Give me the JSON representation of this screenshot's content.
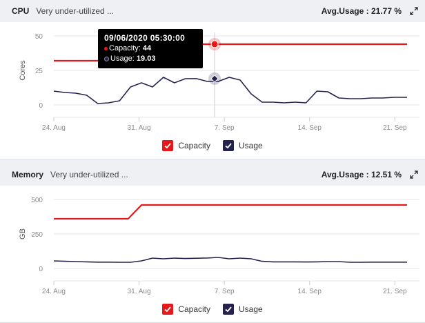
{
  "panels": [
    {
      "title": "CPU",
      "status": "Very under-utilized ...",
      "avg_usage": "Avg.Usage : 21.77 %",
      "chart_data": {
        "type": "line",
        "ylabel": "Cores",
        "ylim": [
          0,
          50
        ],
        "y_ticks": [
          "0",
          "25",
          "50"
        ],
        "x_ticks": [
          "24. Aug",
          "31. Aug",
          "7. Sep",
          "14. Sep",
          "21. Sep"
        ],
        "x_tick_days": [
          0,
          7,
          14,
          21,
          28
        ],
        "x_range_days": [
          0,
          29
        ],
        "series": [
          {
            "name": "Capacity",
            "color": "#e5191b",
            "x_days": [
              0,
              7.2,
              7.5,
              29
            ],
            "values": [
              32,
              32,
              44,
              44
            ]
          },
          {
            "name": "Usage",
            "color": "#23234d",
            "x_days": [
              0,
              0.9,
              1.8,
              2.7,
              3.6,
              4.5,
              5.4,
              6.3,
              7.2,
              8.1,
              9.0,
              9.9,
              10.8,
              11.7,
              12.6,
              13.5,
              14.4,
              15.3,
              16.2,
              17.1,
              18.0,
              18.9,
              19.8,
              20.7,
              21.6,
              22.5,
              23.4,
              24.3,
              25.2,
              26.1,
              27.0,
              27.9,
              29.0
            ],
            "values": [
              10,
              9,
              8.5,
              7,
              1,
              1.5,
              3,
              13,
              16,
              13,
              20,
              16,
              19,
              19.03,
              17,
              17,
              20,
              18,
              8,
              2,
              2,
              1.5,
              2,
              1.5,
              10,
              9.5,
              5,
              4.5,
              4.5,
              5,
              5,
              5.5,
              5.5
            ]
          }
        ],
        "tooltip": {
          "time": "09/06/2020 05:30:00",
          "capacity_label": "Capacity:",
          "capacity_value": "44",
          "usage_label": "Usage:",
          "usage_value": "19.03",
          "x_day": 13.2
        },
        "legend": [
          "Capacity",
          "Usage"
        ]
      }
    },
    {
      "title": "Memory",
      "status": "Very under-utilized ...",
      "avg_usage": "Avg.Usage : 12.51 %",
      "chart_data": {
        "type": "line",
        "ylabel": "GB",
        "ylim": [
          0,
          500
        ],
        "y_ticks": [
          "0",
          "250",
          "500"
        ],
        "x_ticks": [
          "24. Aug",
          "31. Aug",
          "7. Sep",
          "14. Sep",
          "21. Sep"
        ],
        "x_tick_days": [
          0,
          7,
          14,
          21,
          28
        ],
        "x_range_days": [
          0,
          29
        ],
        "series": [
          {
            "name": "Capacity",
            "color": "#e5191b",
            "x_days": [
              0,
              6.1,
              7.2,
              29
            ],
            "values": [
              360,
              360,
              460,
              460
            ]
          },
          {
            "name": "Usage",
            "color": "#23234d",
            "x_days": [
              0,
              0.9,
              1.8,
              2.7,
              3.6,
              4.5,
              5.4,
              6.3,
              7.2,
              8.1,
              9.0,
              9.9,
              10.8,
              11.7,
              12.6,
              13.5,
              14.4,
              15.3,
              16.2,
              17.1,
              18.0,
              18.9,
              19.8,
              20.7,
              21.6,
              22.5,
              23.4,
              24.3,
              25.2,
              26.1,
              27.0,
              27.9,
              29.0
            ],
            "values": [
              55,
              52,
              50,
              48,
              46,
              46,
              45,
              45,
              55,
              75,
              70,
              75,
              72,
              74,
              76,
              80,
              70,
              75,
              70,
              52,
              48,
              48,
              48,
              47,
              48,
              50,
              50,
              45,
              45,
              46,
              46,
              46,
              46
            ]
          }
        ],
        "legend": [
          "Capacity",
          "Usage"
        ]
      }
    }
  ],
  "colors": {
    "capacity": "#e5191b",
    "usage": "#23234d",
    "header_bg": "#eef0f4",
    "grid": "#e6e6e6"
  },
  "icons": {
    "expand": "expand-arrows-icon",
    "check": "check-icon"
  }
}
